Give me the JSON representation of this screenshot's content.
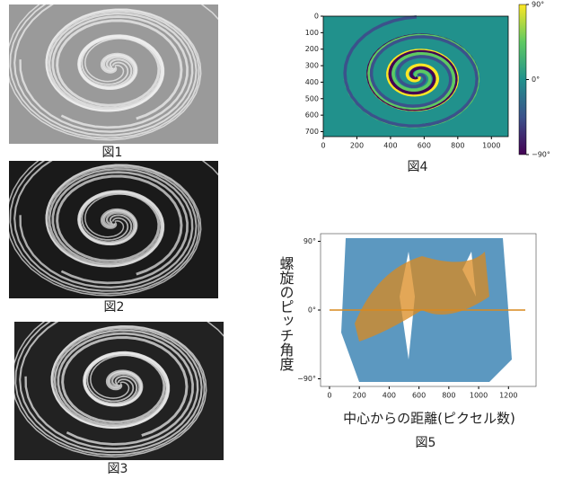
{
  "figures": {
    "fig1": {
      "caption": "図1"
    },
    "fig2": {
      "caption": "図2"
    },
    "fig3": {
      "caption": "図3"
    },
    "fig4": {
      "caption": "図4",
      "xlim": [
        0,
        1100
      ],
      "ylim": [
        0,
        730
      ],
      "xticks": [
        0,
        200,
        400,
        600,
        800,
        1000
      ],
      "yticks": [
        0,
        100,
        200,
        300,
        400,
        500,
        600,
        700
      ],
      "clim": [
        -90,
        90
      ],
      "cticks": [
        {
          "value": 90,
          "label": "90°"
        },
        {
          "value": 0,
          "label": "0°"
        },
        {
          "value": -90,
          "label": "−90°"
        }
      ]
    },
    "fig5": {
      "caption": "図5",
      "y_label": "螺旋のピッチ角度",
      "x_label": "中心からの距離(ピクセル数)",
      "xlim": [
        -60,
        1385
      ],
      "ylim": [
        -100,
        100
      ],
      "xticks": [
        0,
        200,
        400,
        600,
        800,
        1000,
        1200
      ],
      "yticks": [
        {
          "value": 90,
          "label": "90°"
        },
        {
          "value": 0,
          "label": "0°"
        },
        {
          "value": -90,
          "label": "−90°"
        }
      ]
    }
  }
}
